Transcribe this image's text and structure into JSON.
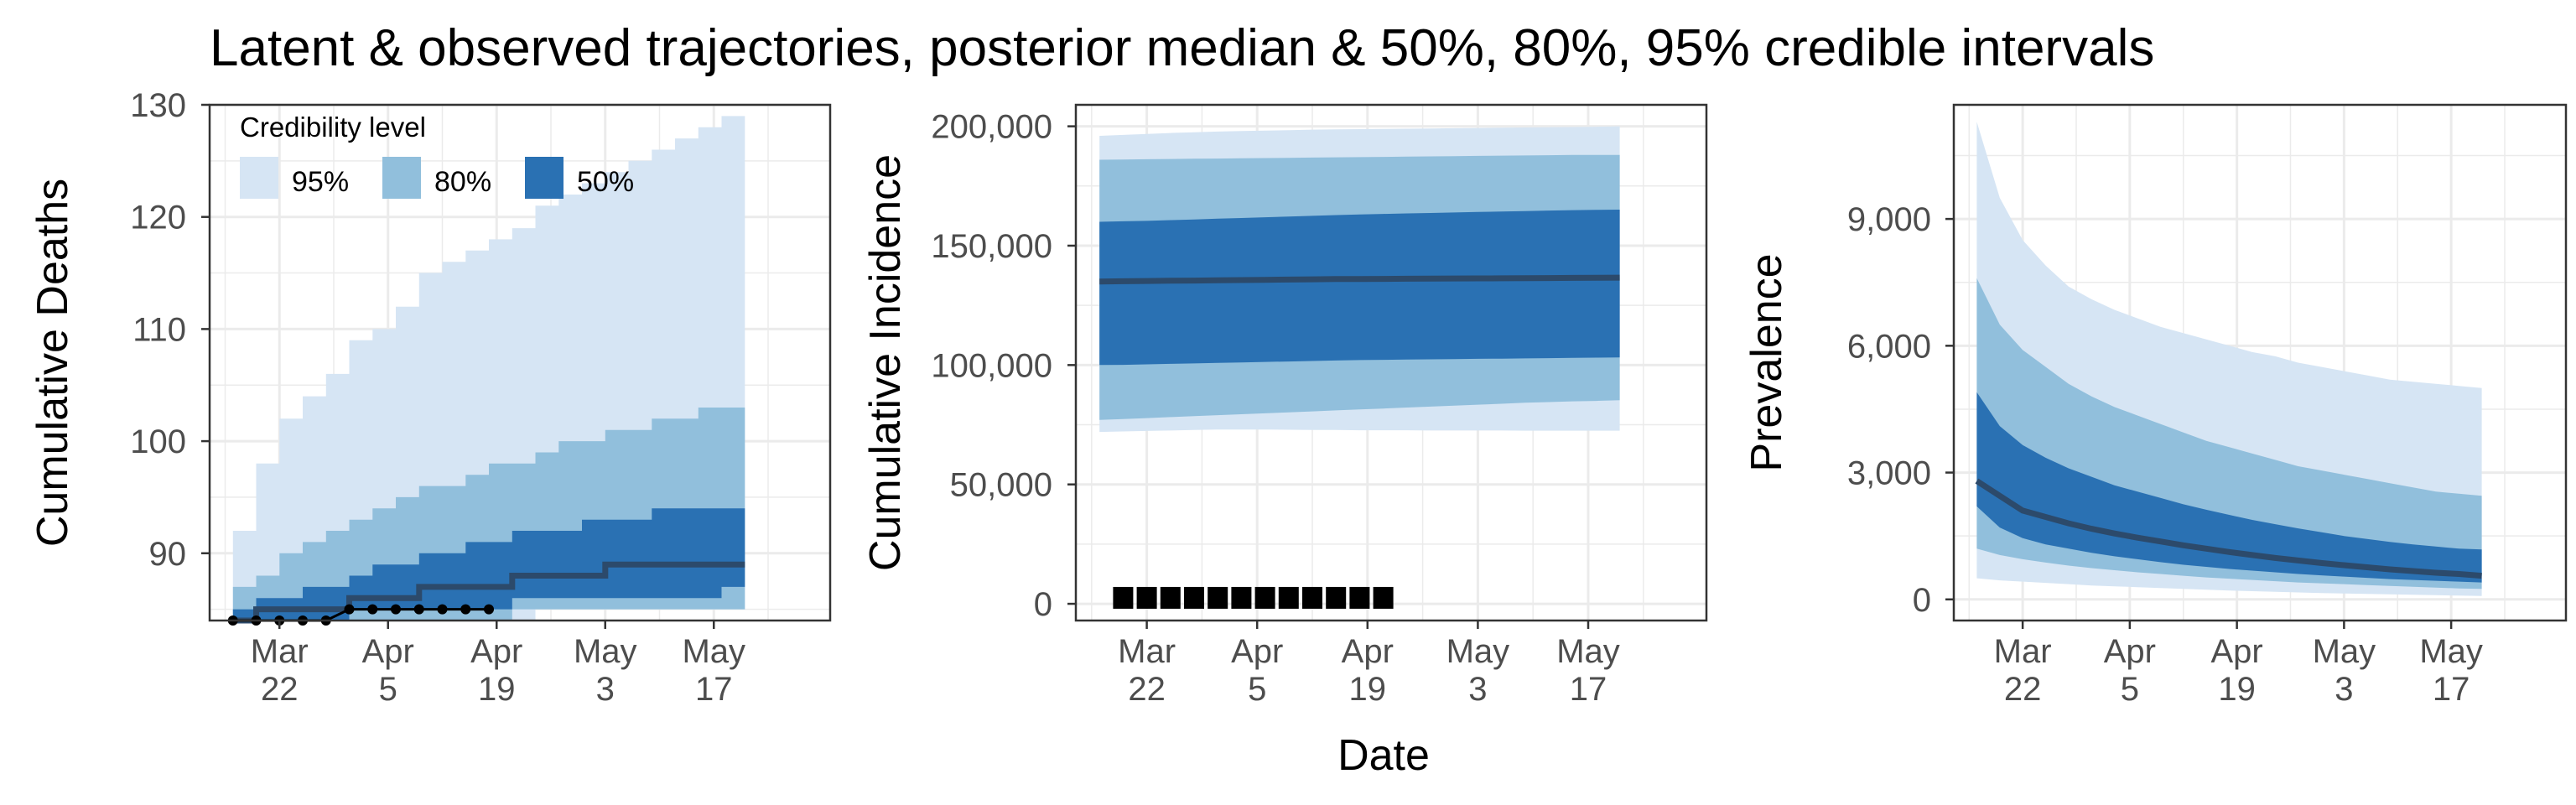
{
  "title": "Latent & observed trajectories, posterior median & 50%, 80%, 95% credible intervals",
  "colors": {
    "band95": "#d6e5f4",
    "band80": "#91bfdc",
    "band50": "#2a71b3",
    "median": "#2c4a6b",
    "observed": "#000000",
    "grid": "#ebebeb",
    "panel_border": "#333333"
  },
  "legend": {
    "title": "Credibility level",
    "items": [
      {
        "label": "95%",
        "color": "#d6e5f4"
      },
      {
        "label": "80%",
        "color": "#91bfdc"
      },
      {
        "label": "50%",
        "color": "#2a71b3"
      }
    ]
  },
  "shared_xlabel": "Date",
  "x_ticks": [
    "Mar\n22",
    "Apr\n5",
    "Apr\n19",
    "May\n3",
    "May\n17"
  ],
  "chart_data": [
    {
      "type": "area",
      "ylabel": "Cumulative Deaths",
      "x": [
        "Mar 16",
        "Mar 19",
        "Mar 22",
        "Mar 25",
        "Mar 28",
        "Mar 31",
        "Apr 3",
        "Apr 6",
        "Apr 9",
        "Apr 12",
        "Apr 15",
        "Apr 18",
        "Apr 21",
        "Apr 24",
        "Apr 27",
        "Apr 30",
        "May 3",
        "May 6",
        "May 9",
        "May 12",
        "May 15",
        "May 18",
        "May 21"
      ],
      "ylim": [
        84,
        130
      ],
      "yticks": [
        90,
        100,
        110,
        120,
        130
      ],
      "ytick_labels": [
        "90",
        "100",
        "110",
        "120",
        "130"
      ],
      "bands": [
        {
          "level": "95%",
          "lower": [
            84,
            84,
            84,
            84,
            84,
            84,
            84,
            84,
            84,
            84,
            84,
            84,
            84,
            85,
            85,
            85,
            85,
            85,
            85,
            85,
            85,
            85,
            85
          ],
          "upper": [
            92,
            98,
            102,
            104,
            106,
            109,
            110,
            112,
            115,
            116,
            117,
            118,
            119,
            121,
            122,
            123,
            124,
            125,
            126,
            127,
            128,
            129,
            129
          ]
        },
        {
          "level": "80%",
          "lower": [
            84,
            84,
            84,
            84,
            84,
            84,
            84,
            84,
            84,
            84,
            84,
            84,
            85,
            85,
            85,
            85,
            85,
            85,
            85,
            85,
            85,
            85,
            85
          ],
          "upper": [
            87,
            88,
            90,
            91,
            92,
            93,
            94,
            95,
            96,
            96,
            97,
            98,
            98,
            99,
            100,
            100,
            101,
            101,
            102,
            102,
            103,
            103,
            103
          ]
        },
        {
          "level": "50%",
          "lower": [
            84,
            84,
            84,
            84,
            84,
            85,
            85,
            85,
            85,
            85,
            85,
            85,
            86,
            86,
            86,
            86,
            86,
            86,
            86,
            86,
            86,
            87,
            87
          ],
          "upper": [
            85,
            86,
            86,
            87,
            87,
            88,
            89,
            89,
            90,
            90,
            91,
            91,
            92,
            92,
            92,
            93,
            93,
            93,
            94,
            94,
            94,
            94,
            95
          ]
        }
      ],
      "median": [
        84,
        85,
        85,
        85,
        85,
        86,
        86,
        86,
        87,
        87,
        87,
        87,
        88,
        88,
        88,
        88,
        89,
        89,
        89,
        89,
        89,
        89,
        89
      ],
      "observed": {
        "x": [
          "Mar 16",
          "Mar 19",
          "Mar 22",
          "Mar 25",
          "Mar 28",
          "Mar 31",
          "Apr 3",
          "Apr 6",
          "Apr 9",
          "Apr 12",
          "Apr 15",
          "Apr 18"
        ],
        "y": [
          84,
          84,
          84,
          84,
          84,
          85,
          85,
          85,
          85,
          85,
          85,
          85
        ]
      }
    },
    {
      "type": "area",
      "ylabel": "Cumulative Incidence",
      "x": [
        "Mar 16",
        "Mar 19",
        "Mar 22",
        "Mar 25",
        "Mar 28",
        "Mar 31",
        "Apr 3",
        "Apr 6",
        "Apr 9",
        "Apr 12",
        "Apr 15",
        "Apr 18",
        "Apr 21",
        "Apr 24",
        "Apr 27",
        "Apr 30",
        "May 3",
        "May 6",
        "May 9",
        "May 12",
        "May 15",
        "May 18",
        "May 21"
      ],
      "ylim": [
        -7000,
        209000
      ],
      "yticks": [
        0,
        50000,
        100000,
        150000,
        200000
      ],
      "ytick_labels": [
        "0",
        "50,000",
        "100,000",
        "150,000",
        "200,000"
      ],
      "bands": [
        {
          "level": "95%",
          "lower": [
            72000,
            72200,
            72400,
            72600,
            72800,
            73000,
            73000,
            73000,
            72900,
            72800,
            72800,
            72700,
            72700,
            72700,
            72600,
            72600,
            72600,
            72600,
            72500,
            72500,
            72500,
            72500,
            72500
          ],
          "upper": [
            196000,
            196400,
            196800,
            197200,
            197500,
            197800,
            198000,
            198200,
            198400,
            198600,
            198700,
            198800,
            198900,
            199000,
            199100,
            199200,
            199300,
            199400,
            199500,
            199600,
            199700,
            199800,
            200000
          ]
        },
        {
          "level": "80%",
          "lower": [
            77000,
            77400,
            77800,
            78200,
            78600,
            79000,
            79400,
            79800,
            80200,
            80600,
            81000,
            81400,
            81800,
            82200,
            82600,
            83000,
            83400,
            83800,
            84200,
            84500,
            84800,
            85000,
            85300
          ],
          "upper": [
            186000,
            186100,
            186200,
            186300,
            186400,
            186500,
            186600,
            186700,
            186800,
            186900,
            187000,
            187100,
            187200,
            187300,
            187400,
            187500,
            187600,
            187700,
            187800,
            187900,
            188000,
            188000,
            188000
          ]
        },
        {
          "level": "50%",
          "lower": [
            100000,
            100100,
            100300,
            100500,
            100700,
            100900,
            101100,
            101300,
            101500,
            101700,
            101900,
            102100,
            102200,
            102300,
            102400,
            102500,
            102600,
            102700,
            102800,
            102900,
            103000,
            103100,
            103200
          ],
          "upper": [
            160000,
            160200,
            160400,
            160700,
            161000,
            161300,
            161600,
            161900,
            162200,
            162500,
            162800,
            163100,
            163300,
            163500,
            163700,
            163900,
            164100,
            164300,
            164500,
            164700,
            164900,
            165000,
            165100
          ]
        }
      ],
      "median": [
        135000,
        135100,
        135200,
        135300,
        135400,
        135500,
        135600,
        135700,
        135800,
        135900,
        136000,
        136050,
        136100,
        136150,
        136200,
        136250,
        136300,
        136350,
        136400,
        136450,
        136500,
        136550,
        136600
      ],
      "observed": {
        "x": [
          "Mar 19",
          "Mar 22",
          "Mar 25",
          "Mar 28",
          "Mar 31",
          "Apr 3",
          "Apr 6",
          "Apr 9",
          "Apr 12",
          "Apr 15",
          "Apr 18",
          "Apr 21"
        ],
        "y": [
          2500,
          2500,
          2500,
          2500,
          2500,
          2500,
          2500,
          2500,
          2500,
          2500,
          2500,
          2500
        ]
      }
    },
    {
      "type": "area",
      "ylabel": "Prevalence",
      "x": [
        "Mar 16",
        "Mar 19",
        "Mar 22",
        "Mar 25",
        "Mar 28",
        "Mar 31",
        "Apr 3",
        "Apr 6",
        "Apr 9",
        "Apr 12",
        "Apr 15",
        "Apr 18",
        "Apr 21",
        "Apr 24",
        "Apr 27",
        "Apr 30",
        "May 3",
        "May 6",
        "May 9",
        "May 12",
        "May 15",
        "May 18",
        "May 21"
      ],
      "ylim": [
        -500,
        11700
      ],
      "yticks": [
        0,
        3000,
        6000,
        9000
      ],
      "ytick_labels": [
        "0",
        "3,000",
        "6,000",
        "9,000"
      ],
      "bands": [
        {
          "level": "95%",
          "lower": [
            500,
            450,
            420,
            390,
            360,
            330,
            310,
            290,
            270,
            250,
            230,
            210,
            195,
            180,
            165,
            150,
            140,
            130,
            120,
            110,
            100,
            90,
            80
          ],
          "upper": [
            11300,
            9500,
            8500,
            7900,
            7400,
            7100,
            6850,
            6650,
            6450,
            6300,
            6150,
            6000,
            5850,
            5750,
            5600,
            5500,
            5400,
            5300,
            5200,
            5150,
            5100,
            5050,
            5000
          ]
        },
        {
          "level": "80%",
          "lower": [
            1200,
            1050,
            950,
            870,
            800,
            740,
            690,
            640,
            600,
            560,
            520,
            490,
            460,
            430,
            400,
            380,
            360,
            340,
            320,
            300,
            280,
            260,
            250
          ],
          "upper": [
            7600,
            6500,
            5900,
            5500,
            5100,
            4800,
            4550,
            4350,
            4150,
            3950,
            3750,
            3600,
            3450,
            3300,
            3150,
            3050,
            2950,
            2850,
            2750,
            2650,
            2550,
            2500,
            2450
          ]
        },
        {
          "level": "50%",
          "lower": [
            2200,
            1700,
            1450,
            1300,
            1200,
            1100,
            1020,
            950,
            880,
            820,
            770,
            720,
            680,
            640,
            600,
            570,
            540,
            510,
            480,
            460,
            440,
            420,
            400
          ],
          "upper": [
            4900,
            4100,
            3650,
            3350,
            3100,
            2900,
            2700,
            2550,
            2400,
            2250,
            2120,
            2000,
            1880,
            1780,
            1680,
            1590,
            1500,
            1430,
            1360,
            1300,
            1250,
            1200,
            1180
          ]
        }
      ],
      "median": [
        2800,
        2450,
        2100,
        1950,
        1800,
        1670,
        1560,
        1460,
        1370,
        1280,
        1200,
        1120,
        1050,
        980,
        920,
        860,
        810,
        760,
        710,
        670,
        630,
        600,
        560
      ]
    }
  ]
}
